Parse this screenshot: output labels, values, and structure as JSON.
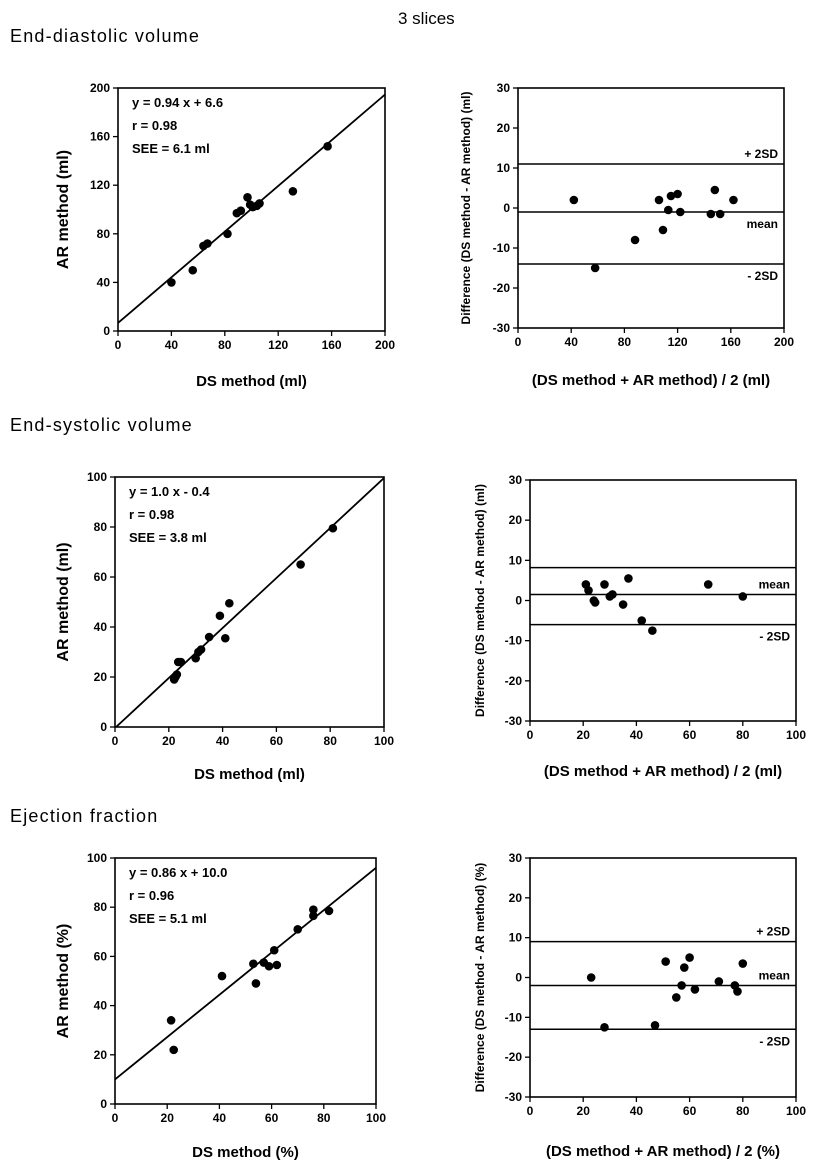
{
  "figure": {
    "suptitle": "3 slices",
    "sections": [
      "End-diastolic volume",
      "End-systolic volume",
      "Ejection fraction"
    ]
  },
  "chart_data": [
    {
      "type": "scatter",
      "section": "End-diastolic volume",
      "xlabel": "DS method (ml)",
      "ylabel": "AR method (ml)",
      "xlim": [
        0,
        200
      ],
      "ylim": [
        0,
        200
      ],
      "xticks": [
        0,
        40,
        80,
        120,
        160,
        200
      ],
      "yticks": [
        0,
        40,
        80,
        120,
        160,
        200
      ],
      "annotations": [
        "y = 0.94 x + 6.6",
        "r = 0.98",
        "SEE = 6.1 ml"
      ],
      "regression": {
        "slope": 0.94,
        "intercept": 6.6
      },
      "points": [
        [
          40,
          40
        ],
        [
          56,
          50
        ],
        [
          64,
          70
        ],
        [
          67,
          72
        ],
        [
          82,
          80
        ],
        [
          89,
          97
        ],
        [
          92,
          99
        ],
        [
          97,
          110
        ],
        [
          99,
          104
        ],
        [
          101,
          102
        ],
        [
          104,
          103
        ],
        [
          106,
          105
        ],
        [
          131,
          115
        ],
        [
          157,
          152
        ]
      ]
    },
    {
      "type": "scatter",
      "section": "End-diastolic volume",
      "xlabel": "(DS method + AR method) / 2  (ml)",
      "ylabel": "Difference (DS method - AR method) (ml)",
      "xlim": [
        0,
        200
      ],
      "ylim": [
        -30,
        30
      ],
      "xticks": [
        0,
        40,
        80,
        120,
        160,
        200
      ],
      "yticks": [
        30,
        20,
        10,
        0,
        -10,
        -20,
        -30
      ],
      "hlines": [
        {
          "label": "+ 2SD",
          "y": 11,
          "label_pos": "above"
        },
        {
          "label": "mean",
          "y": -1,
          "label_pos": "below"
        },
        {
          "label": "- 2SD",
          "y": -14,
          "label_pos": "below"
        }
      ],
      "points": [
        [
          42,
          2
        ],
        [
          58,
          -15
        ],
        [
          88,
          -8
        ],
        [
          106,
          2
        ],
        [
          109,
          -5.5
        ],
        [
          113,
          -0.5
        ],
        [
          115,
          3
        ],
        [
          120,
          3.5
        ],
        [
          122,
          -1
        ],
        [
          145,
          -1.5
        ],
        [
          148,
          4.5
        ],
        [
          152,
          -1.5
        ],
        [
          162,
          2
        ]
      ]
    },
    {
      "type": "scatter",
      "section": "End-systolic volume",
      "xlabel": "DS method (ml)",
      "ylabel": "AR method (ml)",
      "xlim": [
        0,
        100
      ],
      "ylim": [
        0,
        100
      ],
      "xticks": [
        0,
        20,
        40,
        60,
        80,
        100
      ],
      "yticks": [
        0,
        20,
        40,
        60,
        80,
        100
      ],
      "annotations": [
        "y = 1.0 x - 0.4",
        "r = 0.98",
        "SEE = 3.8 ml"
      ],
      "regression": {
        "slope": 1.0,
        "intercept": -0.4
      },
      "points": [
        [
          22,
          19
        ],
        [
          22.5,
          20
        ],
        [
          23,
          21
        ],
        [
          23.5,
          26
        ],
        [
          24.5,
          26
        ],
        [
          30,
          27.5
        ],
        [
          31,
          30
        ],
        [
          32,
          31
        ],
        [
          35,
          36
        ],
        [
          39,
          44.5
        ],
        [
          41,
          35.5
        ],
        [
          42.5,
          49.5
        ],
        [
          69,
          65
        ],
        [
          81,
          79.5
        ]
      ]
    },
    {
      "type": "scatter",
      "section": "End-systolic volume",
      "xlabel": "(DS method + AR method) / 2  (ml)",
      "ylabel": "Difference (DS method - AR method) (ml)",
      "xlim": [
        0,
        100
      ],
      "ylim": [
        -30,
        30
      ],
      "xticks": [
        0,
        20,
        40,
        60,
        80,
        100
      ],
      "yticks": [
        30,
        20,
        10,
        0,
        -10,
        -20,
        -30
      ],
      "hlines": [
        {
          "label": "mean",
          "y": 1.5,
          "label_pos": "above"
        },
        {
          "label": "- 2SD",
          "y": -6,
          "label_pos": "below"
        }
      ],
      "top_line_y": 8.2,
      "points": [
        [
          21,
          4
        ],
        [
          22,
          2.5
        ],
        [
          24,
          0
        ],
        [
          24.5,
          -0.5
        ],
        [
          28,
          4
        ],
        [
          30,
          1
        ],
        [
          31,
          1.5
        ],
        [
          35,
          -1
        ],
        [
          37,
          5.5
        ],
        [
          42,
          -5
        ],
        [
          46,
          -7.5
        ],
        [
          67,
          4
        ],
        [
          80,
          1
        ]
      ]
    },
    {
      "type": "scatter",
      "section": "Ejection fraction",
      "xlabel": "DS method (%)",
      "ylabel": "AR method (%)",
      "xlim": [
        0,
        100
      ],
      "ylim": [
        0,
        100
      ],
      "xticks": [
        0,
        20,
        40,
        60,
        80,
        100
      ],
      "yticks": [
        0,
        20,
        40,
        60,
        80,
        100
      ],
      "annotations": [
        "y = 0.86 x + 10.0",
        "r = 0.96",
        "SEE = 5.1 ml"
      ],
      "regression": {
        "slope": 0.86,
        "intercept": 10.0
      },
      "points": [
        [
          21.5,
          34
        ],
        [
          22.5,
          22
        ],
        [
          41,
          52
        ],
        [
          53,
          57
        ],
        [
          54,
          49
        ],
        [
          57,
          57.5
        ],
        [
          59,
          56
        ],
        [
          61,
          62.5
        ],
        [
          62,
          56.5
        ],
        [
          70,
          71
        ],
        [
          76,
          76.5
        ],
        [
          76,
          79
        ],
        [
          82,
          78.5
        ]
      ]
    },
    {
      "type": "scatter",
      "section": "Ejection fraction",
      "xlabel": "(DS method + AR method) / 2  (%)",
      "ylabel": "Difference (DS method - AR method) (%)",
      "xlim": [
        0,
        100
      ],
      "ylim": [
        -30,
        30
      ],
      "xticks": [
        0,
        20,
        40,
        60,
        80,
        100
      ],
      "yticks": [
        30,
        20,
        10,
        0,
        -10,
        -20,
        -30
      ],
      "hlines": [
        {
          "label": "+ 2SD",
          "y": 9,
          "label_pos": "above"
        },
        {
          "label": "mean",
          "y": -2,
          "label_pos": "above"
        },
        {
          "label": "- 2SD",
          "y": -13,
          "label_pos": "below"
        }
      ],
      "points": [
        [
          23,
          0
        ],
        [
          28,
          -12.5
        ],
        [
          47,
          -12
        ],
        [
          51,
          4
        ],
        [
          55,
          -5
        ],
        [
          57,
          -2
        ],
        [
          58,
          2.5
        ],
        [
          60,
          5
        ],
        [
          62,
          -3
        ],
        [
          71,
          -1
        ],
        [
          77,
          -2
        ],
        [
          78,
          -3.5
        ],
        [
          80,
          3.5
        ]
      ]
    }
  ]
}
